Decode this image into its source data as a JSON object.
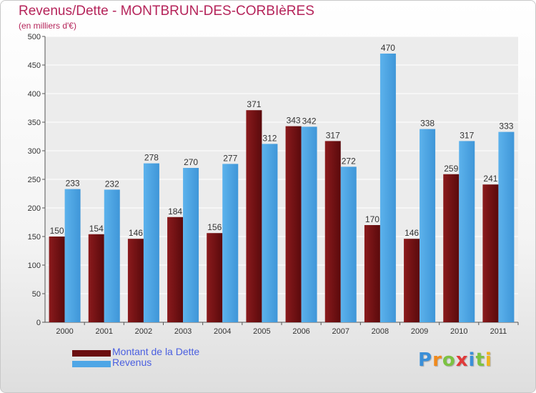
{
  "title": "Revenus/Dette - MONTBRUN-DES-CORBIèRES",
  "subtitle": "(en milliers d'€)",
  "colors": {
    "dette": "#6b0e10",
    "revenus": "#4ea6e6",
    "title": "#b5245a",
    "legend_text": "#4a5fe0"
  },
  "legend": [
    {
      "label": "Montant de la Dette",
      "color": "#6b0e10"
    },
    {
      "label": "Revenus",
      "color": "#4ea6e6"
    }
  ],
  "logo": {
    "letters": [
      "P",
      "r",
      "o",
      "x",
      "i",
      "t",
      "i"
    ]
  },
  "chart_data": {
    "type": "bar",
    "categories": [
      "2000",
      "2001",
      "2002",
      "2003",
      "2004",
      "2005",
      "2006",
      "2007",
      "2008",
      "2009",
      "2010",
      "2011"
    ],
    "series": [
      {
        "name": "Montant de la Dette",
        "values": [
          150,
          154,
          146,
          184,
          156,
          371,
          343,
          317,
          170,
          146,
          259,
          241
        ]
      },
      {
        "name": "Revenus",
        "values": [
          233,
          232,
          278,
          270,
          277,
          312,
          342,
          272,
          470,
          338,
          317,
          333
        ]
      }
    ],
    "ylim": [
      0,
      500
    ],
    "yticks": [
      0,
      50,
      100,
      150,
      200,
      250,
      300,
      350,
      400,
      450,
      500
    ],
    "grid": true,
    "legend_position": "bottom-left"
  }
}
